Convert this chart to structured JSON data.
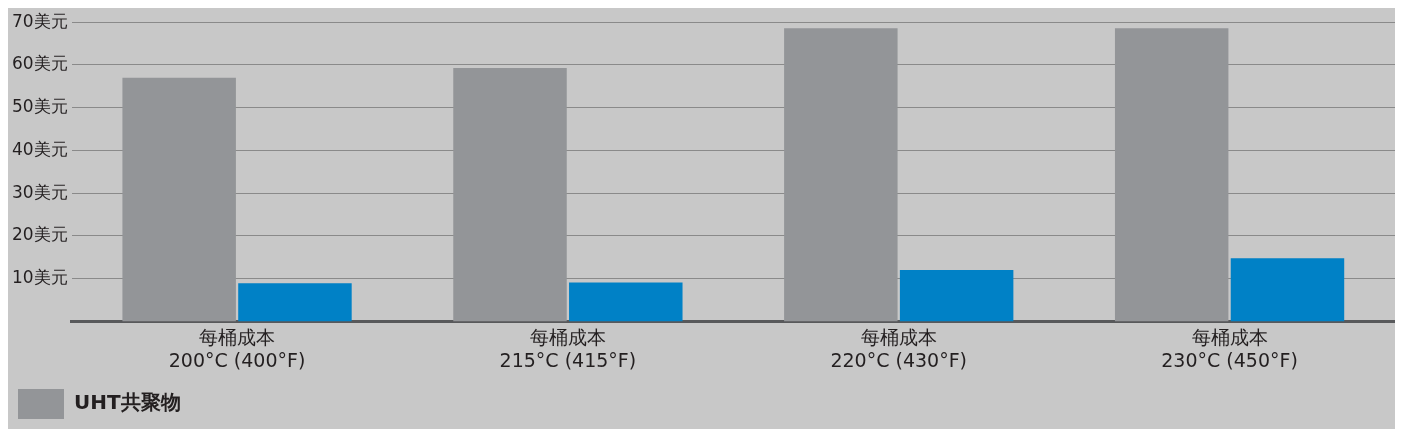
{
  "chart_data": {
    "type": "bar",
    "categories": [
      "每桶成本\n200°C (400°F)",
      "每桶成本\n215°C (415°F)",
      "每桶成本\n220°C (430°F)",
      "每桶成本\n230°C (450°F)"
    ],
    "series": [
      {
        "name": "UHT共聚物",
        "color": "#939598",
        "values": [
          57,
          59.3,
          68.6,
          68.6
        ]
      },
      {
        "color": "#0081c6",
        "values": [
          8.9,
          9.1,
          12,
          14.8
        ]
      }
    ],
    "ylim": [
      0,
      70
    ],
    "yticks": [
      {
        "value": 10,
        "label": "10美元"
      },
      {
        "value": 20,
        "label": "20美元"
      },
      {
        "value": 30,
        "label": "30美元"
      },
      {
        "value": 40,
        "label": "40美元"
      },
      {
        "value": 50,
        "label": "50美元"
      },
      {
        "value": 60,
        "label": "60美元"
      },
      {
        "value": 70,
        "label": "70美元"
      }
    ],
    "grid": "y",
    "legend": "bottom left"
  }
}
